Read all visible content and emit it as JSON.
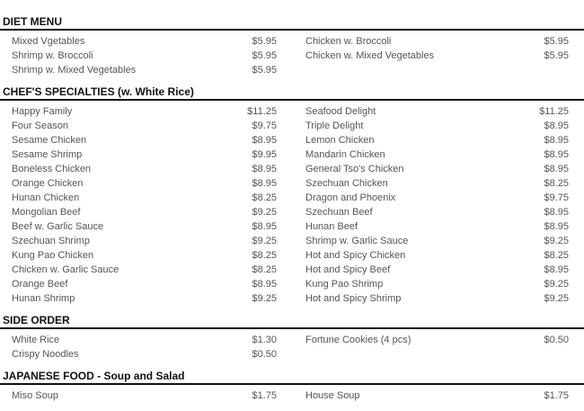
{
  "sections": [
    {
      "title": "DIET MENU",
      "rows": [
        [
          [
            "Mixed Vgetables",
            "$5.95"
          ],
          [
            "Chicken w. Broccoli",
            "$5.95"
          ]
        ],
        [
          [
            "Shrimp w. Broccoli",
            "$5.95"
          ],
          [
            "Chicken w. Mixed Vegetables",
            "$5.95"
          ]
        ],
        [
          [
            "Shrimp w. Mixed Vegetables",
            "$5.95"
          ],
          null
        ]
      ]
    },
    {
      "title": "CHEF'S SPECIALTIES (w. White Rice)",
      "rows": [
        [
          [
            "Happy Family",
            "$11.25"
          ],
          [
            "Seafood Delight",
            "$11.25"
          ]
        ],
        [
          [
            "Four Season",
            "$9.75"
          ],
          [
            "Triple Delight",
            "$8.95"
          ]
        ],
        [
          [
            "Sesame Chicken",
            "$8.95"
          ],
          [
            "Lemon Chicken",
            "$8.95"
          ]
        ],
        [
          [
            "Sesame Shrimp",
            "$9.95"
          ],
          [
            "Mandarin Chicken",
            "$8.95"
          ]
        ],
        [
          [
            "Boneless Chicken",
            "$8.95"
          ],
          [
            "General Tso's Chicken",
            "$8.95"
          ]
        ],
        [
          [
            "Orange Chicken",
            "$8.95"
          ],
          [
            "Szechuan Chicken",
            "$8.25"
          ]
        ],
        [
          [
            "Hunan Chicken",
            "$8.25"
          ],
          [
            "Dragon and Phoenix",
            "$9.75"
          ]
        ],
        [
          [
            "Mongolian Beef",
            "$9.25"
          ],
          [
            "Szechuan Beef",
            "$8.95"
          ]
        ],
        [
          [
            "Beef w. Garlic Sauce",
            "$8.95"
          ],
          [
            "Hunan Beef",
            "$8.95"
          ]
        ],
        [
          [
            "Szechuan Shrimp",
            "$9.25"
          ],
          [
            "Shrimp w. Garlic Sauce",
            "$9.25"
          ]
        ],
        [
          [
            "Kung Pao Chicken",
            "$8.25"
          ],
          [
            "Hot and Spicy Chicken",
            "$8.25"
          ]
        ],
        [
          [
            "Chicken w. Garlic Sauce",
            "$8.25"
          ],
          [
            "Hot and Spicy Beef",
            "$8.95"
          ]
        ],
        [
          [
            "Orange Beef",
            "$8.95"
          ],
          [
            "Kung Pao Shrimp",
            "$9.25"
          ]
        ],
        [
          [
            "Hunan Shrimp",
            "$9.25"
          ],
          [
            "Hot and Spicy Shrimp",
            "$9.25"
          ]
        ]
      ]
    },
    {
      "title": "SIDE ORDER",
      "rows": [
        [
          [
            "White Rice",
            "$1.30"
          ],
          [
            "Fortune Cookies (4 pcs)",
            "$0.50"
          ]
        ],
        [
          [
            "Crispy Noodles",
            "$0.50"
          ],
          null
        ]
      ]
    },
    {
      "title": "JAPANESE FOOD - Soup and Salad",
      "rows": [
        [
          [
            "Miso Soup",
            "$1.75"
          ],
          [
            "House Soup",
            "$1.75"
          ]
        ]
      ]
    }
  ]
}
